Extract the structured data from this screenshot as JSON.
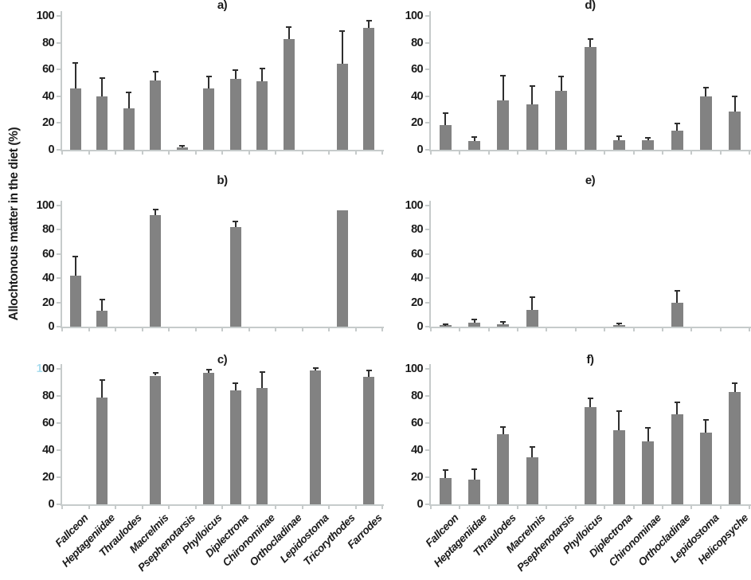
{
  "style": {
    "bar_color": "#828282",
    "error_color": "#2e2e2e",
    "axis_color": "#c6cbcb",
    "text_color": "#1b1b1b",
    "clipped_digit_color": "#a9dcee",
    "background": "#ffffff"
  },
  "chart_data": {
    "type": "bar",
    "title": "",
    "ylabel": "Allochtonous matter in the diet (%)",
    "xlabel": "",
    "ylim": [
      0,
      100
    ],
    "yticks": [
      0,
      20,
      40,
      60,
      80,
      100
    ],
    "grid": false,
    "error_bars": true,
    "legend": null,
    "columns": {
      "left_categories": [
        "Fallceon",
        "Heptageniidae",
        "Thraulodes",
        "Macrelmis",
        "Psephenotarsis",
        "Phylloicus",
        "Diplectrona",
        "Chironominae",
        "Orthocladinae",
        "Lepidostoma",
        "Tricorythodes",
        "Farrodes"
      ],
      "right_categories": [
        "Fallceon",
        "Heptageniidae",
        "Thraulodes",
        "Macrelmis",
        "Psephenotarsis",
        "Phylloicus",
        "Diplectrona",
        "Chironominae",
        "Orthocladinae",
        "Lepidostoma",
        "Helicopsyche"
      ]
    },
    "panels": [
      {
        "label": "a)",
        "column": "left",
        "values": [
          46,
          40,
          31,
          52,
          2,
          46,
          53,
          51,
          83,
          null,
          64,
          91
        ],
        "errors": [
          18,
          13,
          11,
          6,
          0.5,
          8,
          6,
          9,
          8,
          null,
          24,
          5
        ],
        "show_xlabels": false,
        "clip_100": false
      },
      {
        "label": "b)",
        "column": "left",
        "values": [
          42,
          13,
          null,
          92,
          null,
          null,
          82,
          null,
          null,
          null,
          96,
          null
        ],
        "errors": [
          15,
          9,
          null,
          4,
          null,
          null,
          4,
          null,
          null,
          null,
          null,
          null
        ],
        "show_xlabels": false,
        "clip_100": false
      },
      {
        "label": "c)",
        "column": "left",
        "values": [
          null,
          79,
          null,
          95,
          null,
          97,
          84,
          86,
          null,
          99,
          null,
          94
        ],
        "errors": [
          null,
          12,
          null,
          1.5,
          null,
          2,
          5,
          11,
          null,
          1,
          null,
          4
        ],
        "show_xlabels": true,
        "clip_100": true
      },
      {
        "label": "d)",
        "column": "right",
        "values": [
          18.5,
          6.5,
          37,
          34,
          44,
          77,
          7,
          7,
          14,
          40,
          28.5
        ],
        "errors": [
          8,
          2.5,
          18,
          13,
          10,
          5,
          2.5,
          1.5,
          5,
          6,
          11
        ],
        "show_xlabels": false,
        "clip_100": false
      },
      {
        "label": "e)",
        "column": "right",
        "values": [
          1,
          3,
          2,
          13.5,
          null,
          null,
          1.5,
          null,
          20,
          null,
          null
        ],
        "errors": [
          0.5,
          2,
          1,
          10,
          null,
          null,
          0.5,
          null,
          9,
          null,
          null
        ],
        "show_xlabels": false,
        "clip_100": false
      },
      {
        "label": "f)",
        "column": "right",
        "values": [
          19.5,
          18,
          51.5,
          34.5,
          null,
          72,
          54.5,
          46.5,
          66.5,
          53,
          83
        ],
        "errors": [
          5.5,
          7.5,
          5,
          7,
          null,
          5.5,
          13.5,
          9.5,
          8,
          9,
          6
        ],
        "show_xlabels": true,
        "clip_100": false
      }
    ]
  }
}
